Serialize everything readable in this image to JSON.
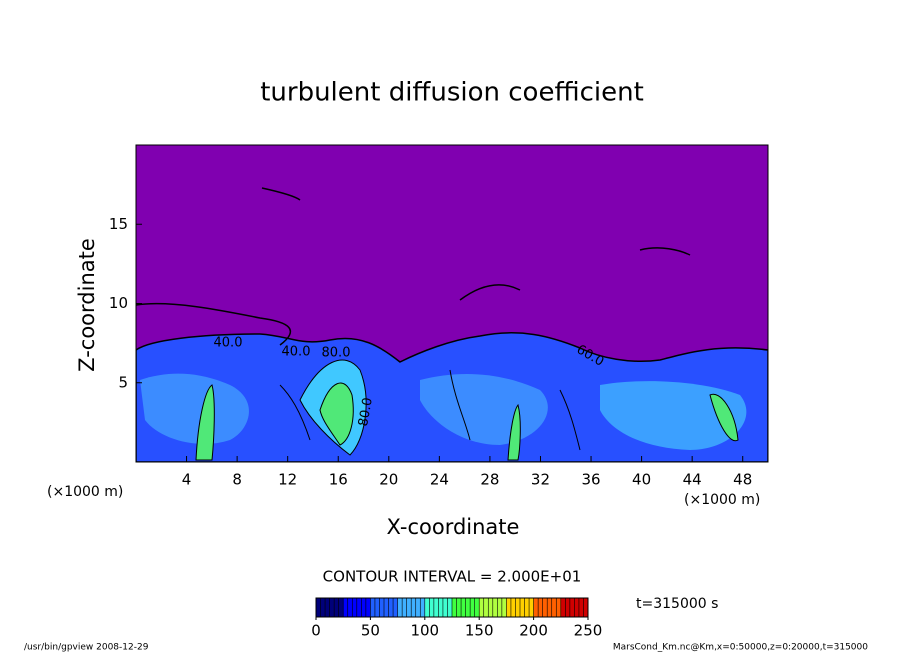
{
  "chart_data": {
    "type": "contour",
    "title": "turbulent diffusion coefficient",
    "x_label": "X-coordinate",
    "y_label": "Z-coordinate",
    "x_unit": "(×1000 m)",
    "y_unit": "(×1000 m)",
    "xlim": [
      0,
      50
    ],
    "xticks": [
      4,
      8,
      12,
      16,
      20,
      24,
      28,
      32,
      36,
      40,
      44,
      48
    ],
    "ylim": [
      0,
      20
    ],
    "yticks": [
      5,
      10,
      15
    ],
    "contour_interval": "CONTOUR INTERVAL = 2.000E+01",
    "contour_labels": [
      "40.0",
      "40.0",
      "80.0",
      "80.0",
      "60.0"
    ],
    "time": "t=315000 s",
    "colorbar": {
      "lim": [
        0,
        250
      ],
      "ticks": [
        0,
        50,
        100,
        150,
        200,
        250
      ]
    },
    "footer_left": "/usr/bin/gpview   2008-12-29",
    "footer_right": "MarsCond_Km.nc@Km,x=0:50000,z=0:20000,t=315000"
  }
}
